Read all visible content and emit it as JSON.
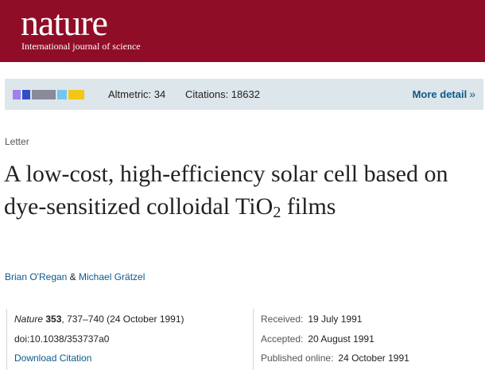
{
  "masthead": {
    "logo": "nature",
    "tagline": "International journal of science"
  },
  "metrics": {
    "donut_colors": [
      "#a07ff0",
      "#2f4fc8",
      "#8a8a9a",
      "#74c5f0",
      "#f5c518"
    ],
    "altmetric": "Altmetric: 34",
    "citations": "Citations: 18632",
    "more_detail": "More detail",
    "more_icon": "»"
  },
  "article": {
    "type": "Letter",
    "title_main": "A low-cost, high-efficiency solar cell based on dye-sensitized colloidal TiO",
    "title_sub": "2",
    "title_end": " films",
    "author1": "Brian O'Regan",
    "author_sep": " & ",
    "author2": "Michael Grätzel"
  },
  "citation": {
    "journal": "Nature",
    "volume": "353",
    "details": ", 737–740 (24 October 1991)",
    "doi": "doi:10.1038/353737a0",
    "download": "Download Citation"
  },
  "dates": {
    "received_label": "Received:",
    "received": "19 July 1991",
    "accepted_label": "Accepted:",
    "accepted": "20 August 1991",
    "published_label": "Published online:",
    "published": "24 October 1991"
  }
}
